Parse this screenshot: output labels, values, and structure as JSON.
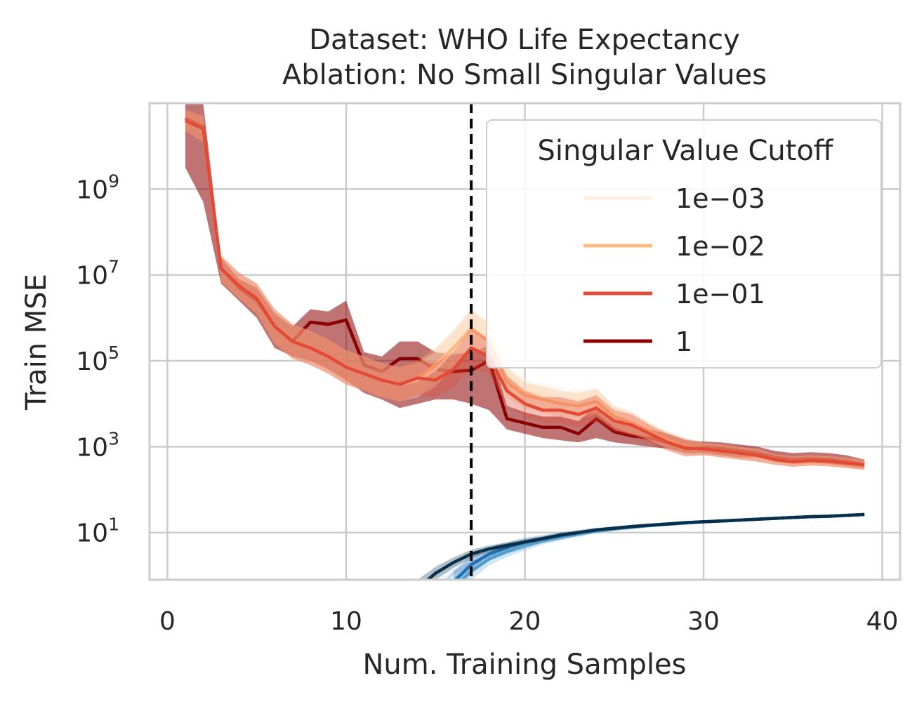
{
  "chart_data": {
    "type": "line",
    "title": "Dataset: WHO Life Expectancy",
    "subtitle": "Ablation: No Small Singular Values",
    "xlabel": "Num. Training Samples",
    "ylabel": "Train MSE",
    "xlim": [
      -1,
      41
    ],
    "ylim_log10": [
      -0.1,
      11.0
    ],
    "yscale": "log",
    "grid": true,
    "x_ticks": [
      {
        "value": 0,
        "label": "0"
      },
      {
        "value": 10,
        "label": "10"
      },
      {
        "value": 20,
        "label": "20"
      },
      {
        "value": 30,
        "label": "30"
      },
      {
        "value": 40,
        "label": "40"
      }
    ],
    "y_ticks": [
      {
        "exp": 1,
        "base": "10",
        "sup": "1"
      },
      {
        "exp": 3,
        "base": "10",
        "sup": "3"
      },
      {
        "exp": 5,
        "base": "10",
        "sup": "5"
      },
      {
        "exp": 7,
        "base": "10",
        "sup": "7"
      },
      {
        "exp": 9,
        "base": "10",
        "sup": "9"
      }
    ],
    "interpolation_threshold_x": 17,
    "legend": {
      "title": "Singular Value Cutoff",
      "position": "top-right",
      "entries": [
        {
          "label": "1e−03",
          "color": "#fdeee2"
        },
        {
          "label": "1e−02",
          "color": "#fdb97e"
        },
        {
          "label": "1e−01",
          "color": "#e34a33"
        },
        {
          "label": "1",
          "color": "#8b0000"
        }
      ]
    },
    "x": [
      1,
      2,
      3,
      4,
      5,
      6,
      7,
      8,
      9,
      10,
      11,
      12,
      13,
      14,
      15,
      16,
      17,
      18,
      19,
      20,
      21,
      22,
      23,
      24,
      25,
      26,
      27,
      28,
      29,
      30,
      31,
      32,
      33,
      34,
      35,
      36,
      37,
      38,
      39
    ],
    "series": [
      {
        "name": "1e−03",
        "group": "test",
        "color": "#fdeee2",
        "band_opacity": 0.35,
        "y_log10": [
          10.6,
          10.4,
          7.15,
          6.75,
          6.45,
          5.8,
          5.45,
          5.3,
          5.1,
          4.85,
          4.7,
          4.55,
          4.45,
          4.55,
          4.8,
          5.25,
          5.75,
          5.5,
          4.6,
          4.3,
          4.2,
          4.1,
          4.05,
          4.1,
          3.7,
          3.55,
          3.35,
          3.15,
          3.0,
          2.95,
          2.9,
          2.85,
          2.8,
          2.7,
          2.65,
          2.68,
          2.66,
          2.62,
          2.58
        ],
        "band_log10": [
          0.25,
          0.3,
          0.3,
          0.3,
          0.35,
          0.4,
          0.4,
          0.4,
          0.4,
          0.4,
          0.4,
          0.4,
          0.4,
          0.4,
          0.4,
          0.4,
          0.45,
          0.4,
          0.35,
          0.3,
          0.3,
          0.3,
          0.3,
          0.3,
          0.25,
          0.25,
          0.2,
          0.2,
          0.2,
          0.15,
          0.15,
          0.15,
          0.15,
          0.12,
          0.12,
          0.12,
          0.12,
          0.12,
          0.12
        ]
      },
      {
        "name": "1e−02",
        "group": "test",
        "color": "#fdb97e",
        "band_opacity": 0.35,
        "y_log10": [
          10.6,
          10.4,
          7.15,
          6.75,
          6.45,
          5.8,
          5.45,
          5.3,
          5.1,
          4.85,
          4.7,
          4.55,
          4.45,
          4.6,
          4.9,
          5.3,
          5.75,
          5.45,
          4.5,
          4.2,
          4.1,
          4.0,
          3.95,
          4.05,
          3.7,
          3.55,
          3.35,
          3.15,
          3.0,
          2.95,
          2.9,
          2.85,
          2.8,
          2.7,
          2.65,
          2.68,
          2.66,
          2.62,
          2.58
        ],
        "band_log10": [
          0.25,
          0.3,
          0.3,
          0.3,
          0.35,
          0.4,
          0.4,
          0.4,
          0.4,
          0.4,
          0.4,
          0.4,
          0.4,
          0.4,
          0.4,
          0.4,
          0.45,
          0.4,
          0.35,
          0.3,
          0.3,
          0.3,
          0.3,
          0.3,
          0.25,
          0.25,
          0.2,
          0.2,
          0.2,
          0.15,
          0.15,
          0.15,
          0.15,
          0.12,
          0.12,
          0.12,
          0.12,
          0.12,
          0.12
        ]
      },
      {
        "name": "1e−01",
        "group": "test",
        "color": "#e34a33",
        "band_opacity": 0.35,
        "y_log10": [
          10.6,
          10.4,
          7.15,
          6.75,
          6.45,
          5.8,
          5.45,
          5.3,
          5.1,
          4.85,
          4.7,
          4.55,
          4.45,
          4.6,
          4.55,
          4.8,
          5.3,
          5.1,
          4.3,
          4.0,
          3.85,
          3.85,
          3.75,
          3.9,
          3.6,
          3.5,
          3.3,
          3.1,
          2.97,
          2.95,
          2.9,
          2.85,
          2.8,
          2.7,
          2.65,
          2.68,
          2.66,
          2.62,
          2.58
        ],
        "band_log10": [
          0.25,
          0.3,
          0.3,
          0.3,
          0.35,
          0.4,
          0.4,
          0.4,
          0.4,
          0.4,
          0.4,
          0.4,
          0.4,
          0.4,
          0.4,
          0.4,
          0.45,
          0.4,
          0.35,
          0.3,
          0.3,
          0.3,
          0.3,
          0.3,
          0.25,
          0.25,
          0.2,
          0.2,
          0.2,
          0.15,
          0.15,
          0.15,
          0.15,
          0.12,
          0.12,
          0.12,
          0.12,
          0.12,
          0.12
        ]
      },
      {
        "name": "1",
        "group": "test",
        "color": "#8b0000",
        "band_opacity": 0.55,
        "y_log10": [
          10.65,
          10.45,
          7.15,
          6.7,
          6.4,
          5.8,
          5.45,
          5.9,
          5.85,
          5.95,
          4.9,
          4.75,
          5.05,
          5.05,
          4.8,
          4.75,
          4.78,
          5.0,
          3.65,
          3.55,
          3.45,
          3.45,
          3.3,
          3.65,
          3.35,
          3.25,
          3.2,
          3.1,
          2.95,
          2.97,
          2.95,
          2.9,
          2.85,
          2.75,
          2.7,
          2.72,
          2.7,
          2.65,
          2.58
        ],
        "lower_log10": [
          9.5,
          8.7,
          6.8,
          6.4,
          6.0,
          5.3,
          5.1,
          5.0,
          4.8,
          4.55,
          4.25,
          4.1,
          3.9,
          4.0,
          4.1,
          4.1,
          4.0,
          3.85,
          3.4,
          3.3,
          3.2,
          3.15,
          3.1,
          3.2,
          3.1,
          3.05,
          3.0,
          2.95,
          2.85,
          2.85,
          2.8,
          2.75,
          2.75,
          2.65,
          2.6,
          2.62,
          2.6,
          2.55,
          2.5
        ],
        "upper_log10": [
          11.2,
          11.0,
          7.4,
          6.9,
          6.7,
          6.1,
          5.8,
          6.2,
          6.15,
          6.4,
          5.2,
          5.1,
          5.45,
          5.45,
          5.2,
          5.15,
          5.2,
          5.35,
          3.95,
          3.8,
          3.7,
          3.7,
          3.6,
          3.95,
          3.6,
          3.5,
          3.4,
          3.3,
          3.15,
          3.12,
          3.1,
          3.05,
          3.0,
          2.9,
          2.85,
          2.87,
          2.85,
          2.8,
          2.7
        ]
      },
      {
        "name": "1e−03",
        "group": "train",
        "color": "#c6dbef",
        "band_opacity": 0.3,
        "x": [
          15,
          16,
          17,
          18,
          19,
          20,
          21,
          22,
          23,
          24,
          25,
          26,
          27,
          28,
          29,
          30,
          31,
          32,
          33,
          34,
          35,
          36,
          37,
          38,
          39
        ],
        "y_log10": [
          -0.35,
          0.05,
          0.3,
          0.48,
          0.6,
          0.72,
          0.82,
          0.9,
          0.98,
          1.05,
          1.1,
          1.13,
          1.17,
          1.2,
          1.23,
          1.25,
          1.27,
          1.29,
          1.31,
          1.33,
          1.35,
          1.37,
          1.38,
          1.4,
          1.42
        ],
        "band_log10": [
          0.25,
          0.2,
          0.15,
          0.12,
          0.1,
          0.08,
          0.07,
          0.06,
          0.05,
          0.05,
          0.04,
          0.04,
          0.04,
          0.03,
          0.03,
          0.03,
          0.03,
          0.03,
          0.03,
          0.03,
          0.03,
          0.03,
          0.03,
          0.03,
          0.03
        ]
      },
      {
        "name": "1e−02",
        "group": "train",
        "color": "#6baed6",
        "band_opacity": 0.3,
        "x": [
          16,
          17,
          18,
          19,
          20,
          21,
          22,
          23,
          24,
          25,
          26,
          27,
          28,
          29,
          30,
          31,
          32,
          33,
          34,
          35,
          36,
          37,
          38,
          39
        ],
        "y_log10": [
          -0.3,
          0.1,
          0.38,
          0.55,
          0.68,
          0.8,
          0.88,
          0.96,
          1.03,
          1.08,
          1.12,
          1.16,
          1.19,
          1.22,
          1.25,
          1.27,
          1.29,
          1.31,
          1.33,
          1.35,
          1.37,
          1.38,
          1.4,
          1.42
        ],
        "band_log10": [
          0.25,
          0.2,
          0.15,
          0.12,
          0.1,
          0.08,
          0.07,
          0.06,
          0.05,
          0.04,
          0.04,
          0.04,
          0.03,
          0.03,
          0.03,
          0.03,
          0.03,
          0.03,
          0.03,
          0.03,
          0.03,
          0.03,
          0.03,
          0.03
        ]
      },
      {
        "name": "1e−01",
        "group": "train",
        "color": "#2171b5",
        "band_opacity": 0.3,
        "x": [
          16,
          17,
          18,
          19,
          20,
          21,
          22,
          23,
          24,
          25,
          26,
          27,
          28,
          29,
          30,
          31,
          32,
          33,
          34,
          35,
          36,
          37,
          38,
          39
        ],
        "y_log10": [
          -0.15,
          0.25,
          0.5,
          0.65,
          0.78,
          0.86,
          0.94,
          1.0,
          1.06,
          1.1,
          1.14,
          1.17,
          1.2,
          1.23,
          1.25,
          1.27,
          1.29,
          1.31,
          1.33,
          1.35,
          1.37,
          1.38,
          1.4,
          1.42
        ],
        "band_log10": [
          0.25,
          0.2,
          0.15,
          0.12,
          0.1,
          0.08,
          0.07,
          0.06,
          0.05,
          0.04,
          0.04,
          0.04,
          0.03,
          0.03,
          0.03,
          0.03,
          0.03,
          0.03,
          0.03,
          0.03,
          0.03,
          0.03,
          0.03,
          0.03
        ]
      },
      {
        "name": "1",
        "group": "train",
        "color": "#08304a",
        "band_opacity": 0.3,
        "x": [
          14,
          15,
          16,
          17,
          18,
          19,
          20,
          21,
          22,
          23,
          24,
          25,
          26,
          27,
          28,
          29,
          30,
          31,
          32,
          33,
          34,
          35,
          36,
          37,
          38,
          39
        ],
        "y_log10": [
          -0.3,
          0.05,
          0.3,
          0.5,
          0.62,
          0.7,
          0.78,
          0.86,
          0.94,
          1.0,
          1.06,
          1.1,
          1.14,
          1.17,
          1.2,
          1.23,
          1.25,
          1.27,
          1.29,
          1.31,
          1.33,
          1.35,
          1.37,
          1.38,
          1.4,
          1.42
        ],
        "band_log10": [
          0.2,
          0.15,
          0.12,
          0.1,
          0.08,
          0.07,
          0.06,
          0.05,
          0.05,
          0.04,
          0.04,
          0.04,
          0.04,
          0.03,
          0.03,
          0.03,
          0.03,
          0.03,
          0.03,
          0.03,
          0.03,
          0.03,
          0.03,
          0.03,
          0.03,
          0.03
        ]
      }
    ]
  }
}
